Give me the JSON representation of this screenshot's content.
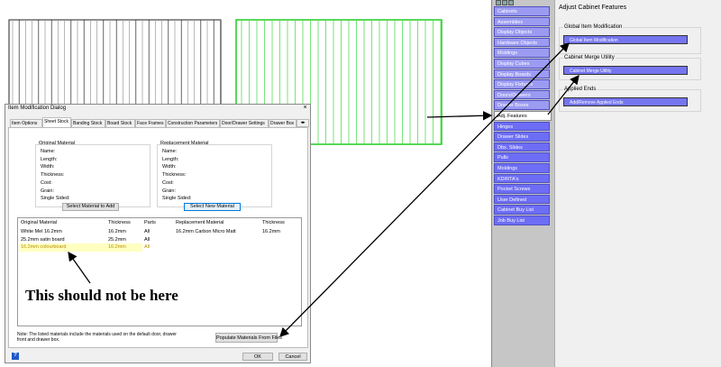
{
  "dialog": {
    "title": "Item Modification Dialog",
    "tabs": [
      "Item Options",
      "Sheet Stock",
      "Banding Stock",
      "Board Stock",
      "Face Frames",
      "Construction Parameters",
      "Door/Drawer Settings",
      "Drawer Box"
    ],
    "original_material": {
      "title": "Original Material",
      "fields": [
        "Name:",
        "Length:",
        "Width:",
        "Thickness:",
        "Cost:",
        "Grain:",
        "Single Sided:"
      ],
      "button": "Select Material to Add"
    },
    "replacement_material": {
      "title": "Replacement Material",
      "fields": [
        "Name:",
        "Length:",
        "Width:",
        "Thickness:",
        "Cost:",
        "Grain:",
        "Single Sided:"
      ],
      "button": "Select New Material"
    },
    "table": {
      "headers": [
        "Original Material",
        "Thickness",
        "Parts",
        "Replacement Material",
        "Thickness"
      ],
      "rows": [
        [
          "White Mel 16.2mm",
          "16.2mm",
          "All",
          "16.2mm Carbon Micro Matt",
          "16.2mm"
        ],
        [
          "25.2mm satin board",
          "25.2mm",
          "All"
        ],
        [
          "16.2mm colourboard",
          "16.2mm",
          "All"
        ]
      ]
    },
    "note": "Note:  The listed materials include the materials used on the default door, drawer front  and drawer box.",
    "populate_button": "Populate Materials From Files",
    "help": "?",
    "ok": "OK",
    "cancel": "Cancel"
  },
  "annotation": "This should not be here",
  "sidebar": {
    "items_upper": [
      "Cabinets",
      "Assemblies",
      "Display Objects",
      "Hardware Objects",
      "Moldings",
      "Display Cubes",
      "Display Boards",
      "Display Fixtures",
      "Doors/Drawers",
      "Drawer Boxes"
    ],
    "active_item": "Adj. Features",
    "items_lower": [
      "Hinges",
      "Drawer Slides",
      "Dbx. Slides",
      "Pulls",
      "Moldings",
      "KD/RTA's",
      "Pocket Screws",
      "User Defined",
      "Cabinet Buy List",
      "Job Buy List"
    ]
  },
  "panel": {
    "title": "Adjust Cabinet Features",
    "groups": [
      {
        "title": "Global Item Modification",
        "button": "Global Item Modification"
      },
      {
        "title": "Cabinet Merge Utility",
        "button": "Cabinet Merge Utility"
      },
      {
        "title": "Applied Ends",
        "button": "Add/Remove Applied Ends"
      }
    ]
  }
}
